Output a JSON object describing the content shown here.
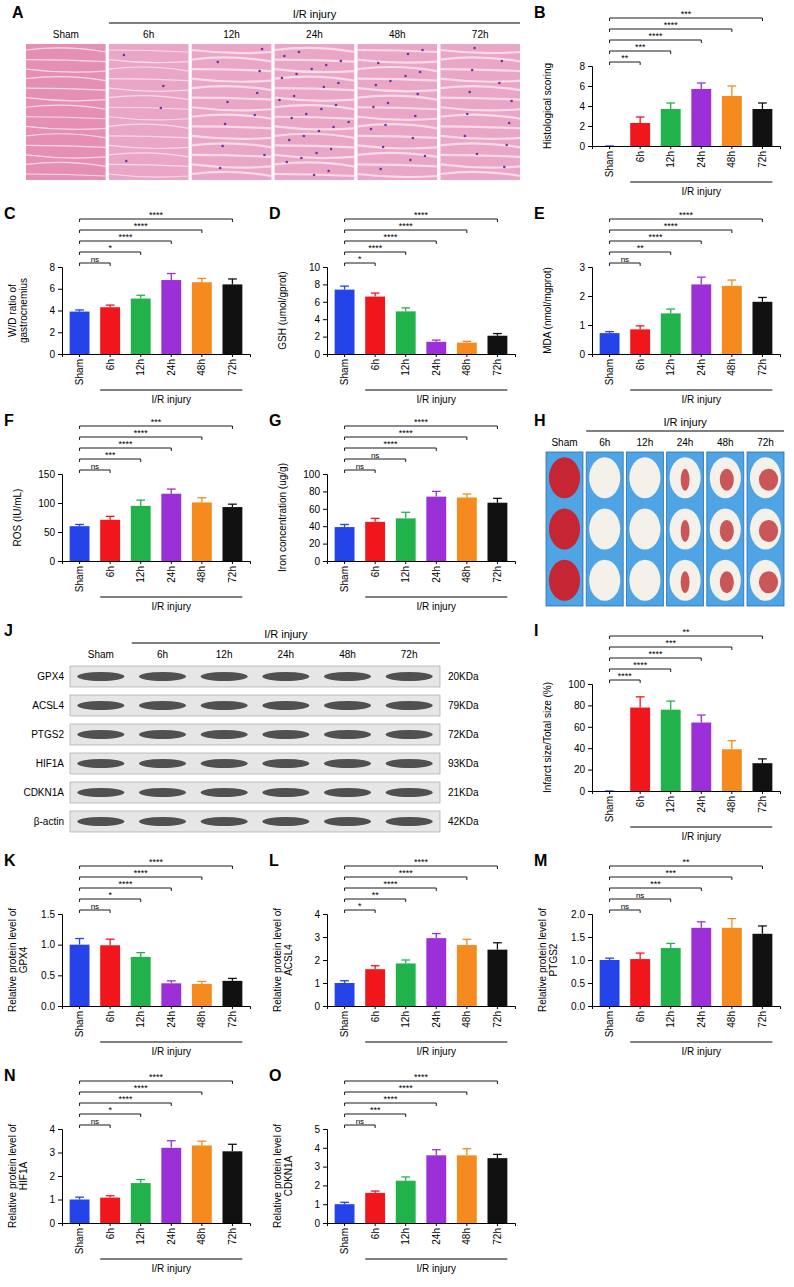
{
  "chart_data": [
    {
      "type": "histology",
      "panel": "A",
      "columns": [
        "Sham",
        "6h",
        "12h",
        "24h",
        "48h",
        "72h"
      ],
      "group_label": "I/R injury"
    },
    {
      "type": "bar",
      "panel": "B",
      "ylabel": "Histological scoring",
      "categories": [
        "Sham",
        "6h",
        "12h",
        "24h",
        "48h",
        "72h"
      ],
      "group_label": "I/R injury",
      "values": [
        0,
        2.3,
        3.7,
        5.7,
        5.0,
        3.7
      ],
      "errors": [
        0,
        0.6,
        0.6,
        0.6,
        1.0,
        0.6
      ],
      "colors": [
        "#2443e8",
        "#f0161c",
        "#22b24c",
        "#9b30d9",
        "#f58a1f",
        "#111111"
      ],
      "ylim": [
        0,
        8
      ],
      "yticks": [
        0,
        2,
        4,
        6,
        8
      ],
      "significance": [
        "**",
        "***",
        "****",
        "****",
        "***"
      ]
    },
    {
      "type": "bar",
      "panel": "C",
      "ylabel": "W/D ratio of gastrocnemius",
      "categories": [
        "Sham",
        "6h",
        "12h",
        "24h",
        "48h",
        "72h"
      ],
      "group_label": "I/R injury",
      "values": [
        3.9,
        4.3,
        5.1,
        6.8,
        6.6,
        6.4
      ],
      "errors": [
        0.15,
        0.2,
        0.3,
        0.6,
        0.35,
        0.5
      ],
      "colors": [
        "#2443e8",
        "#f0161c",
        "#22b24c",
        "#9b30d9",
        "#f58a1f",
        "#111111"
      ],
      "ylim": [
        0,
        8
      ],
      "yticks": [
        0,
        2,
        4,
        6,
        8
      ],
      "significance": [
        "ns",
        "*",
        "****",
        "****",
        "****"
      ]
    },
    {
      "type": "bar",
      "panel": "D",
      "ylabel": "GSH (umol/gprot)",
      "categories": [
        "Sham",
        "6h",
        "12h",
        "24h",
        "48h",
        "72h"
      ],
      "group_label": "I/R injury",
      "values": [
        7.4,
        6.6,
        4.9,
        1.4,
        1.3,
        2.1
      ],
      "errors": [
        0.4,
        0.4,
        0.4,
        0.2,
        0.15,
        0.25
      ],
      "colors": [
        "#2443e8",
        "#f0161c",
        "#22b24c",
        "#9b30d9",
        "#f58a1f",
        "#111111"
      ],
      "ylim": [
        0,
        10
      ],
      "yticks": [
        0,
        2,
        4,
        6,
        8,
        10
      ],
      "significance": [
        "*",
        "****",
        "****",
        "****",
        "****"
      ]
    },
    {
      "type": "bar",
      "panel": "E",
      "ylabel": "MDA (nmol/mgprot)",
      "categories": [
        "Sham",
        "6h",
        "12h",
        "24h",
        "48h",
        "72h"
      ],
      "group_label": "I/R injury",
      "values": [
        0.72,
        0.85,
        1.4,
        2.4,
        2.35,
        1.8
      ],
      "errors": [
        0.05,
        0.12,
        0.15,
        0.25,
        0.2,
        0.15
      ],
      "colors": [
        "#2443e8",
        "#f0161c",
        "#22b24c",
        "#9b30d9",
        "#f58a1f",
        "#111111"
      ],
      "ylim": [
        0,
        3
      ],
      "yticks": [
        0,
        1,
        2,
        3
      ],
      "significance": [
        "ns",
        "**",
        "****",
        "****",
        "****"
      ]
    },
    {
      "type": "bar",
      "panel": "F",
      "ylabel": "ROS (IU/mL)",
      "categories": [
        "Sham",
        "6h",
        "12h",
        "24h",
        "48h",
        "72h"
      ],
      "group_label": "I/R injury",
      "values": [
        60,
        71,
        95,
        116,
        101,
        93
      ],
      "errors": [
        3,
        6,
        10,
        8,
        8,
        5
      ],
      "colors": [
        "#2443e8",
        "#f0161c",
        "#22b24c",
        "#9b30d9",
        "#f58a1f",
        "#111111"
      ],
      "ylim": [
        0,
        150
      ],
      "yticks": [
        0,
        50,
        100,
        150
      ],
      "significance": [
        "ns",
        "***",
        "****",
        "****",
        "***"
      ]
    },
    {
      "type": "bar",
      "panel": "G",
      "ylabel": "Iron concentration (ug/g)",
      "categories": [
        "Sham",
        "6h",
        "12h",
        "24h",
        "48h",
        "72h"
      ],
      "group_label": "I/R injury",
      "values": [
        39,
        45,
        49,
        74,
        73,
        67
      ],
      "errors": [
        3,
        4,
        7,
        6,
        4,
        5
      ],
      "colors": [
        "#2443e8",
        "#f0161c",
        "#22b24c",
        "#9b30d9",
        "#f58a1f",
        "#111111"
      ],
      "ylim": [
        0,
        100
      ],
      "yticks": [
        0,
        20,
        40,
        60,
        80,
        100
      ],
      "significance": [
        "ns",
        "ns",
        "****",
        "****",
        "****"
      ]
    },
    {
      "type": "ttc",
      "panel": "H",
      "columns": [
        "Sham",
        "6h",
        "12h",
        "24h",
        "48h",
        "72h"
      ],
      "group_label": "I/R injury"
    },
    {
      "type": "bar",
      "panel": "I",
      "ylabel": "Infarct size/Total size (%)",
      "categories": [
        "Sham",
        "6h",
        "12h",
        "24h",
        "48h",
        "72h"
      ],
      "group_label": "I/R injury",
      "values": [
        0,
        78,
        76,
        64,
        39,
        26
      ],
      "errors": [
        0,
        10,
        8,
        7,
        8,
        4
      ],
      "colors": [
        "#2443e8",
        "#f0161c",
        "#22b24c",
        "#9b30d9",
        "#f58a1f",
        "#111111"
      ],
      "ylim": [
        0,
        100
      ],
      "yticks": [
        0,
        20,
        40,
        60,
        80,
        100
      ],
      "significance": [
        "****",
        "****",
        "****",
        "***",
        "**"
      ]
    },
    {
      "type": "western_blot",
      "panel": "J",
      "columns": [
        "Sham",
        "6h",
        "12h",
        "24h",
        "48h",
        "72h"
      ],
      "group_label": "I/R injury",
      "rows": [
        "GPX4",
        "ACSL4",
        "PTGS2",
        "HIF1A",
        "CDKN1A",
        "β-actin"
      ],
      "row_sizes": [
        "20KDa",
        "79KDa",
        "72KDa",
        "93KDa",
        "21KDa",
        "42KDa"
      ]
    },
    {
      "type": "bar",
      "panel": "K",
      "ylabel": "Relative protein level of GPX4",
      "categories": [
        "Sham",
        "6h",
        "12h",
        "24h",
        "48h",
        "72h"
      ],
      "group_label": "I/R injury",
      "values": [
        1.0,
        0.99,
        0.8,
        0.37,
        0.36,
        0.41
      ],
      "errors": [
        0.1,
        0.1,
        0.07,
        0.04,
        0.04,
        0.04
      ],
      "colors": [
        "#2443e8",
        "#f0161c",
        "#22b24c",
        "#9b30d9",
        "#f58a1f",
        "#111111"
      ],
      "ylim": [
        0,
        1.5
      ],
      "yticks": [
        {
          "value": 0,
          "label": "0.0"
        },
        0.5,
        {
          "value": 1,
          "label": "1.0"
        },
        1.5
      ],
      "significance": [
        "ns",
        "*",
        "****",
        "****",
        "****"
      ]
    },
    {
      "type": "bar",
      "panel": "L",
      "ylabel": "Relative protein level of ACSL4",
      "categories": [
        "Sham",
        "6h",
        "12h",
        "24h",
        "48h",
        "72h"
      ],
      "group_label": "I/R injury",
      "values": [
        1.0,
        1.6,
        1.85,
        2.95,
        2.65,
        2.45
      ],
      "errors": [
        0.1,
        0.15,
        0.15,
        0.2,
        0.25,
        0.3
      ],
      "colors": [
        "#2443e8",
        "#f0161c",
        "#22b24c",
        "#9b30d9",
        "#f58a1f",
        "#111111"
      ],
      "ylim": [
        0,
        4
      ],
      "yticks": [
        0,
        1,
        2,
        3,
        4
      ],
      "significance": [
        "*",
        "**",
        "****",
        "****",
        "****"
      ]
    },
    {
      "type": "bar",
      "panel": "M",
      "ylabel": "Relative protein level of PTGS2",
      "categories": [
        "Sham",
        "6h",
        "12h",
        "24h",
        "48h",
        "72h"
      ],
      "group_label": "I/R injury",
      "values": [
        1.0,
        1.02,
        1.26,
        1.7,
        1.7,
        1.57
      ],
      "errors": [
        0.04,
        0.13,
        0.1,
        0.13,
        0.2,
        0.17
      ],
      "colors": [
        "#2443e8",
        "#f0161c",
        "#22b24c",
        "#9b30d9",
        "#f58a1f",
        "#111111"
      ],
      "ylim": [
        0,
        2
      ],
      "yticks": [
        {
          "value": 0,
          "label": "0.0"
        },
        0.5,
        {
          "value": 1,
          "label": "1.0"
        },
        1.5,
        {
          "value": 2,
          "label": "2.0"
        }
      ],
      "significance": [
        "ns",
        "ns",
        "***",
        "***",
        "**"
      ]
    },
    {
      "type": "bar",
      "panel": "N",
      "ylabel": "Relative protein level of HIF1A",
      "categories": [
        "Sham",
        "6h",
        "12h",
        "24h",
        "48h",
        "72h"
      ],
      "group_label": "I/R injury",
      "values": [
        1.0,
        1.08,
        1.7,
        3.2,
        3.3,
        3.05
      ],
      "errors": [
        0.1,
        0.08,
        0.15,
        0.3,
        0.18,
        0.3
      ],
      "colors": [
        "#2443e8",
        "#f0161c",
        "#22b24c",
        "#9b30d9",
        "#f58a1f",
        "#111111"
      ],
      "ylim": [
        0,
        4
      ],
      "yticks": [
        0,
        1,
        2,
        3,
        4
      ],
      "significance": [
        "ns",
        "*",
        "****",
        "****",
        "****"
      ]
    },
    {
      "type": "bar",
      "panel": "O",
      "ylabel": "Relative protein level of CDKN1A",
      "categories": [
        "Sham",
        "6h",
        "12h",
        "24h",
        "48h",
        "72h"
      ],
      "group_label": "I/R injury",
      "values": [
        1.0,
        1.6,
        2.25,
        3.6,
        3.6,
        3.45
      ],
      "errors": [
        0.1,
        0.1,
        0.2,
        0.3,
        0.35,
        0.2
      ],
      "colors": [
        "#2443e8",
        "#f0161c",
        "#22b24c",
        "#9b30d9",
        "#f58a1f",
        "#111111"
      ],
      "ylim": [
        0,
        5
      ],
      "yticks": [
        0,
        1,
        2,
        3,
        4,
        5
      ],
      "significance": [
        "ns",
        "***",
        "****",
        "****",
        "****"
      ]
    }
  ]
}
